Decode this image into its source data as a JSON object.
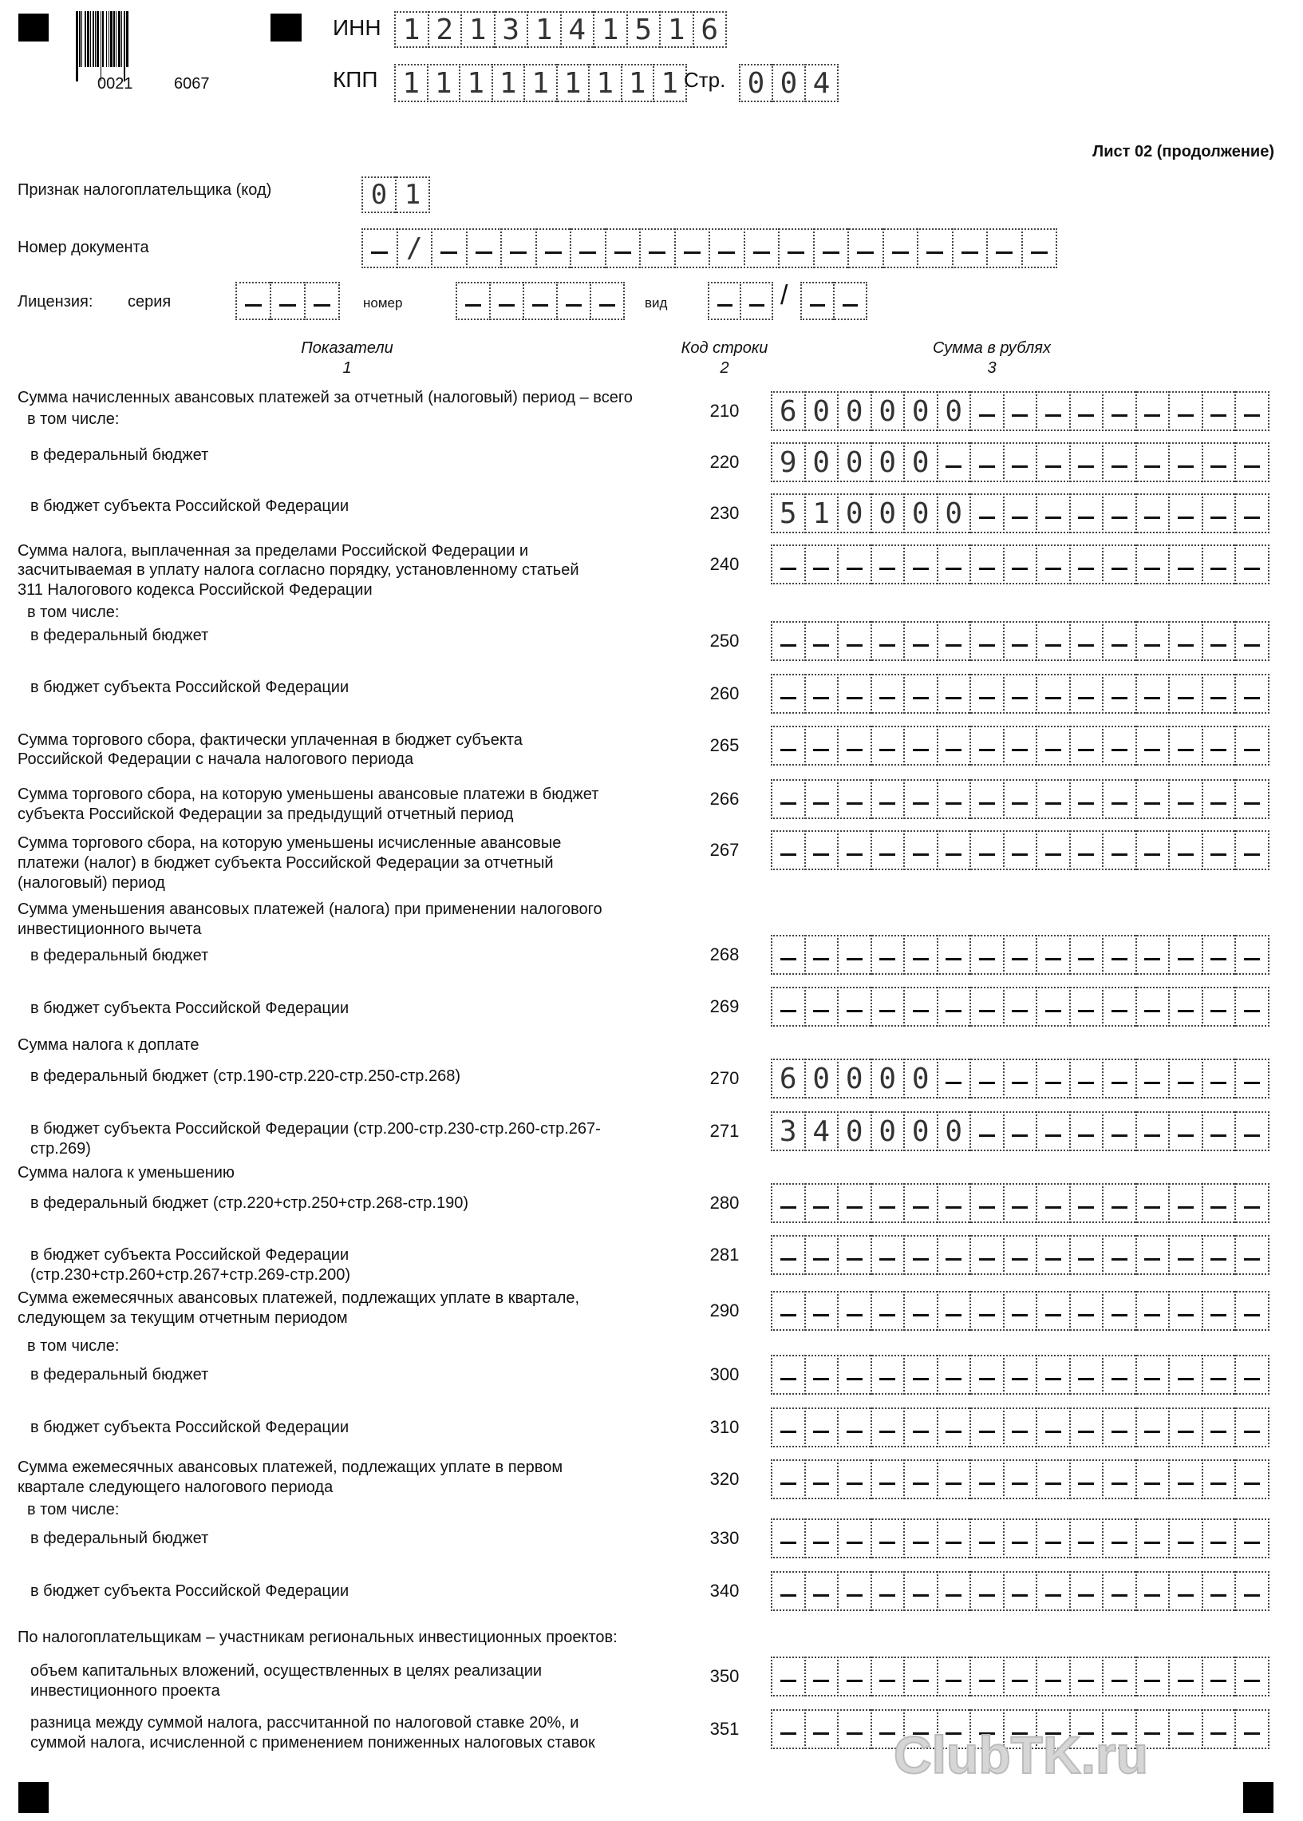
{
  "header": {
    "barcode_text_1": "0021",
    "barcode_text_2": "6067",
    "inn_label": "ИНН",
    "inn_value": "1213141516",
    "kpp_label": "КПП",
    "kpp_value": "111111111",
    "page_label": "Стр.",
    "page_value": "004",
    "sheet_title": "Лист 02 (продолжение)"
  },
  "taxpayer": {
    "sign_label": "Признак налогоплательщика (код)",
    "sign_value": "01",
    "docnum_label": "Номер документа",
    "docnum_value": "-/",
    "license_label": "Лицензия:",
    "series_label": "серия",
    "number_label": "номер",
    "type_label": "вид"
  },
  "columns": {
    "c1": "Показатели",
    "n1": "1",
    "c2": "Код строки",
    "n2": "2",
    "c3": "Сумма в рублях",
    "n3": "3"
  },
  "texts": [
    "Сумма начисленных авансовых платежей за отчетный (налоговый) период – всего",
    "в том числе:",
    "в федеральный бюджет",
    "в бюджет субъекта Российской Федерации",
    "Сумма налога, выплаченная за пределами Российской Федерации и",
    "засчитываемая в уплату налога согласно порядку, установленному статьей",
    "311 Налогового кодекса Российской Федерации",
    "в том числе:",
    "в федеральный бюджет",
    "в бюджет субъекта Российской Федерации",
    "Сумма торгового сбора, фактически уплаченная в бюджет субъекта",
    "Российской Федерации с начала налогового периода",
    "Сумма торгового сбора, на которую уменьшены авансовые платежи в бюджет",
    "субъекта Российской Федерации за предыдущий отчетный период",
    "Сумма торгового сбора, на которую уменьшены исчисленные авансовые",
    "платежи (налог) в бюджет субъекта Российской Федерации за отчетный",
    "(налоговый) период",
    "Сумма уменьшения авансовых платежей (налога) при применении налогового",
    "инвестиционного вычета",
    "в федеральный бюджет",
    "в бюджет субъекта Российской Федерации",
    "Сумма налога к доплате",
    "в федеральный бюджет (стр.190-стр.220-стр.250-стр.268)",
    "в бюджет субъекта Российской Федерации (стр.200-стр.230-стр.260-стр.267-",
    "стр.269)",
    "Сумма налога к уменьшению",
    "в федеральный бюджет (стр.220+стр.250+стр.268-стр.190)",
    "в бюджет субъекта Российской Федерации",
    "(стр.230+стр.260+стр.267+стр.269-стр.200)",
    "Сумма ежемесячных авансовых платежей, подлежащих уплате в квартале,",
    "следующем за текущим отчетным периодом",
    "в том числе:",
    "в федеральный бюджет",
    "в бюджет субъекта Российской Федерации",
    "Сумма ежемесячных авансовых платежей, подлежащих уплате в первом",
    "квартале следующего налогового периода",
    "в том числе:",
    "в федеральный бюджет",
    "в бюджет субъекта Российской Федерации",
    "По налогоплательщикам – участникам региональных инвестиционных проектов:",
    "объем капитальных вложений, осуществленных в целях реализации",
    "инвестиционного проекта",
    "разница между суммой налога, рассчитанной по налоговой ставке 20%, и",
    "суммой налога, исчисленной с применением пониженных налоговых ставок"
  ],
  "rows": [
    {
      "code": "210",
      "value": "600000"
    },
    {
      "code": "220",
      "value": "90000"
    },
    {
      "code": "230",
      "value": "510000"
    },
    {
      "code": "240",
      "value": ""
    },
    {
      "code": "250",
      "value": ""
    },
    {
      "code": "260",
      "value": ""
    },
    {
      "code": "265",
      "value": ""
    },
    {
      "code": "266",
      "value": ""
    },
    {
      "code": "267",
      "value": ""
    },
    {
      "code": "268",
      "value": ""
    },
    {
      "code": "269",
      "value": ""
    },
    {
      "code": "270",
      "value": "60000"
    },
    {
      "code": "271",
      "value": "340000"
    },
    {
      "code": "280",
      "value": ""
    },
    {
      "code": "281",
      "value": ""
    },
    {
      "code": "290",
      "value": ""
    },
    {
      "code": "300",
      "value": ""
    },
    {
      "code": "310",
      "value": ""
    },
    {
      "code": "320",
      "value": ""
    },
    {
      "code": "330",
      "value": ""
    },
    {
      "code": "340",
      "value": ""
    },
    {
      "code": "350",
      "value": ""
    },
    {
      "code": "351",
      "value": ""
    }
  ],
  "watermark": "ClubTK.ru"
}
